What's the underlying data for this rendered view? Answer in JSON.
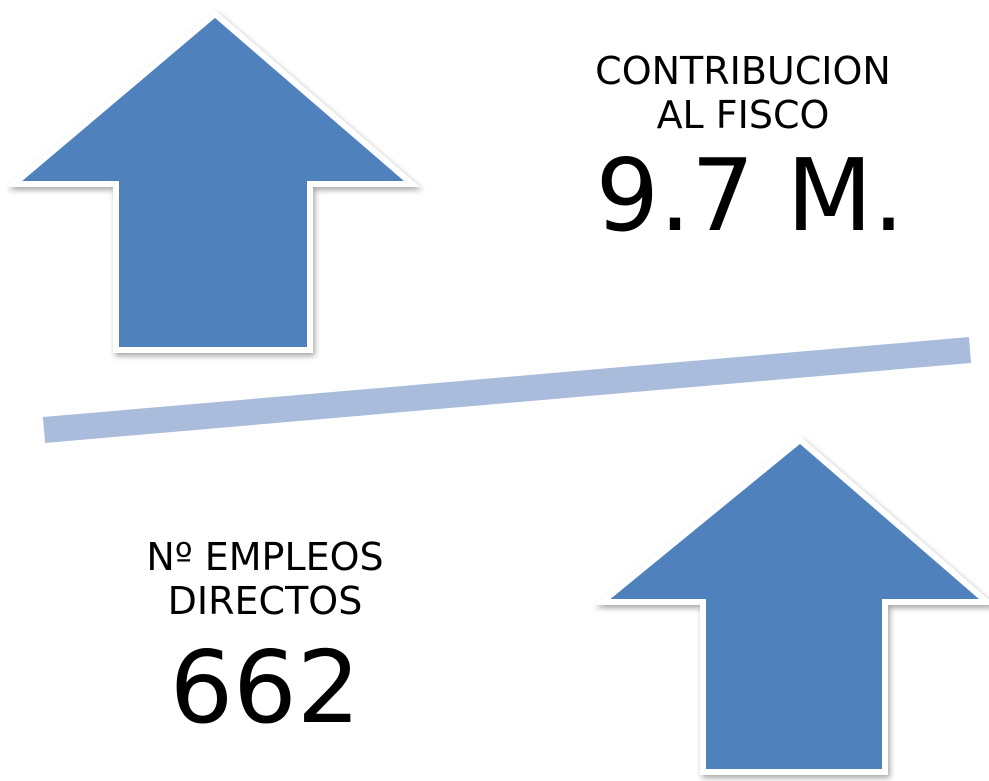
{
  "top": {
    "label_lines": [
      "CONTRIBUCION",
      "AL FISCO"
    ],
    "value": "9.7 M."
  },
  "bottom": {
    "label_lines": [
      "Nº EMPLEOS",
      "DIRECTOS"
    ],
    "value": "662"
  }
}
